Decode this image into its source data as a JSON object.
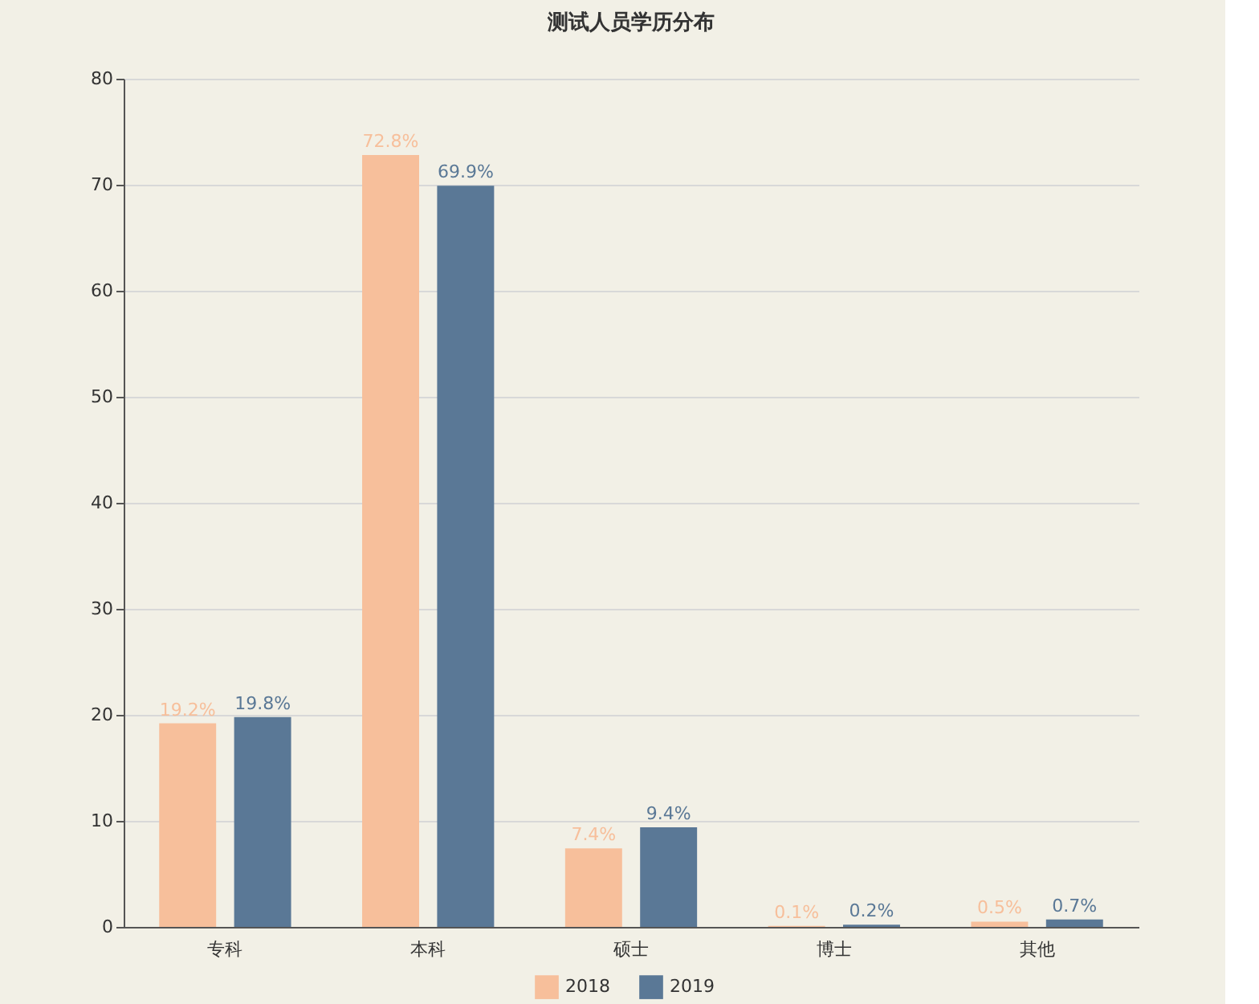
{
  "chart_data": {
    "type": "bar",
    "title": "测试人员学历分布",
    "categories": [
      "专科",
      "本科",
      "硕士",
      "博士",
      "其他"
    ],
    "series": [
      {
        "name": "2018",
        "color": "#f7bf9b",
        "values": [
          19.2,
          72.8,
          7.4,
          0.1,
          0.5
        ],
        "value_labels": [
          "19.2%",
          "72.8%",
          "7.4%",
          "0.1%",
          "0.5%"
        ]
      },
      {
        "name": "2019",
        "color": "#5a7896",
        "values": [
          19.8,
          69.9,
          9.4,
          0.2,
          0.7
        ],
        "value_labels": [
          "19.8%",
          "69.9%",
          "9.4%",
          "0.2%",
          "0.7%"
        ]
      }
    ],
    "ylim": [
      0,
      80
    ],
    "yticks": [
      0,
      10,
      20,
      30,
      40,
      50,
      60,
      70,
      80
    ],
    "grid": "y",
    "legend": "bottom"
  }
}
